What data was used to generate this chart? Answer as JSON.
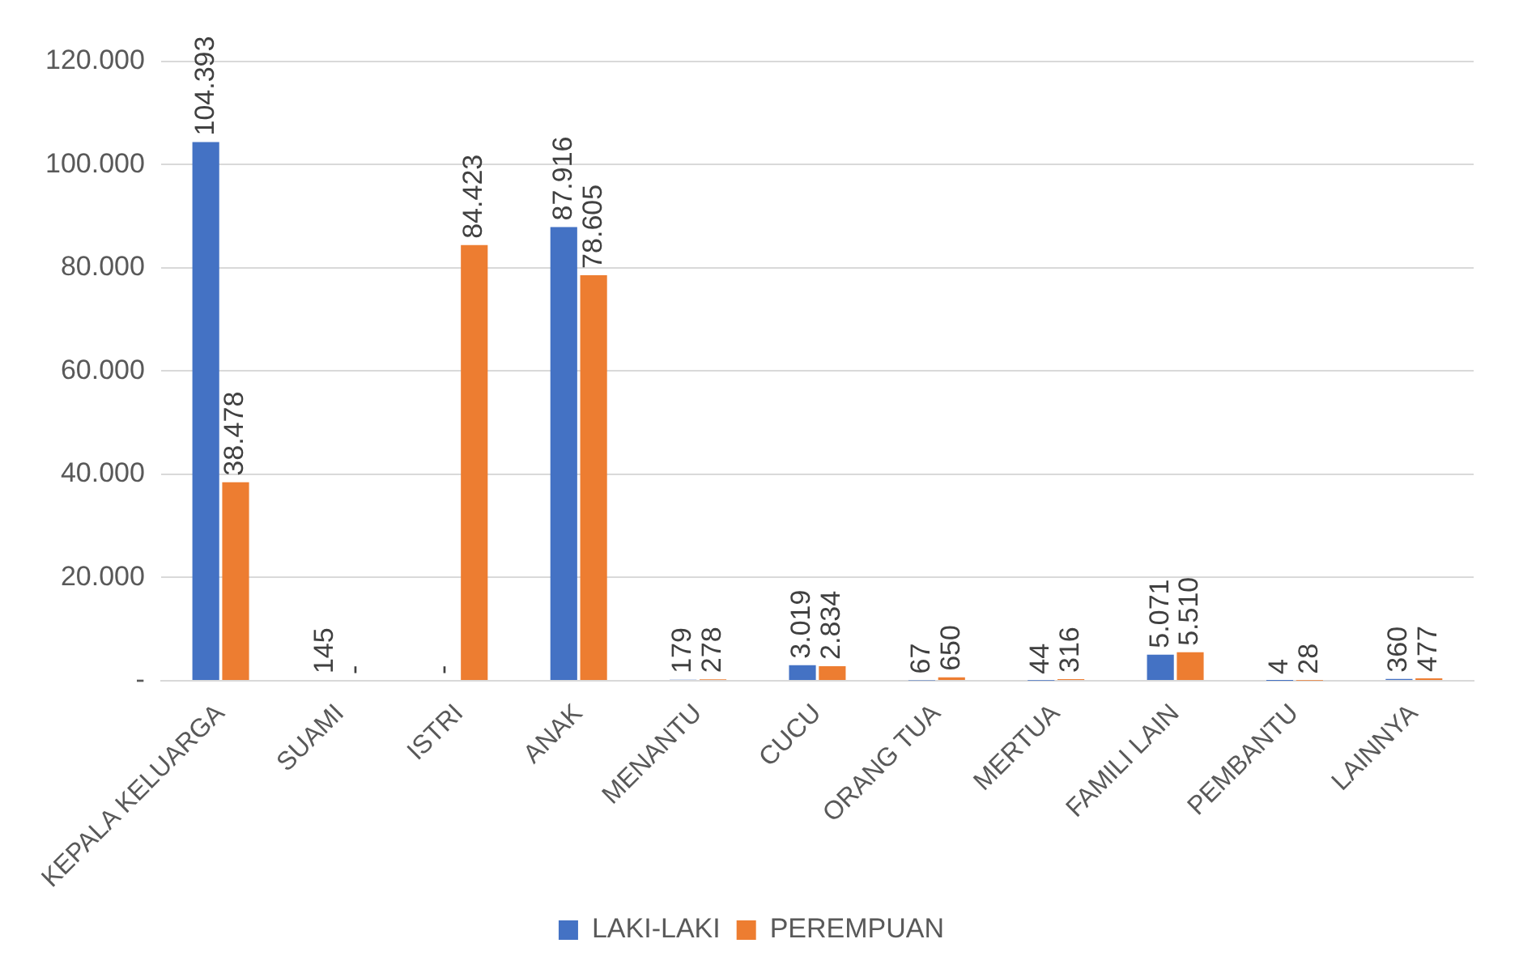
{
  "chart_data": {
    "type": "bar",
    "categories": [
      "KEPALA KELUARGA",
      "SUAMI",
      "ISTRI",
      "ANAK",
      "MENANTU",
      "CUCU",
      "ORANG TUA",
      "MERTUA",
      "FAMILI LAIN",
      "PEMBANTU",
      "LAINNYA"
    ],
    "series": [
      {
        "name": "LAKI-LAKI",
        "color": "#4472c4",
        "values": [
          104393,
          145,
          0,
          87916,
          179,
          3019,
          67,
          44,
          5071,
          4,
          360
        ],
        "value_labels": [
          "104.393",
          "145",
          "-",
          "87.916",
          "179",
          "3.019",
          "67",
          "44",
          "5.071",
          "4",
          "360"
        ]
      },
      {
        "name": "PEREMPUAN",
        "color": "#ed7d31",
        "values": [
          38478,
          0,
          84423,
          78605,
          278,
          2834,
          650,
          316,
          5510,
          28,
          477
        ],
        "value_labels": [
          "38.478",
          "-",
          "84.423",
          "78.605",
          "278",
          "2.834",
          "650",
          "316",
          "5.510",
          "28",
          "477"
        ]
      }
    ],
    "ylim": [
      0,
      120000
    ],
    "yticks": [
      {
        "value": 0,
        "label": "-"
      },
      {
        "value": 20000,
        "label": "20.000"
      },
      {
        "value": 40000,
        "label": "40.000"
      },
      {
        "value": 60000,
        "label": "60.000"
      },
      {
        "value": 80000,
        "label": "80.000"
      },
      {
        "value": 100000,
        "label": "100.000"
      },
      {
        "value": 120000,
        "label": "120.000"
      }
    ],
    "grid": "y",
    "legend": "bottom"
  }
}
